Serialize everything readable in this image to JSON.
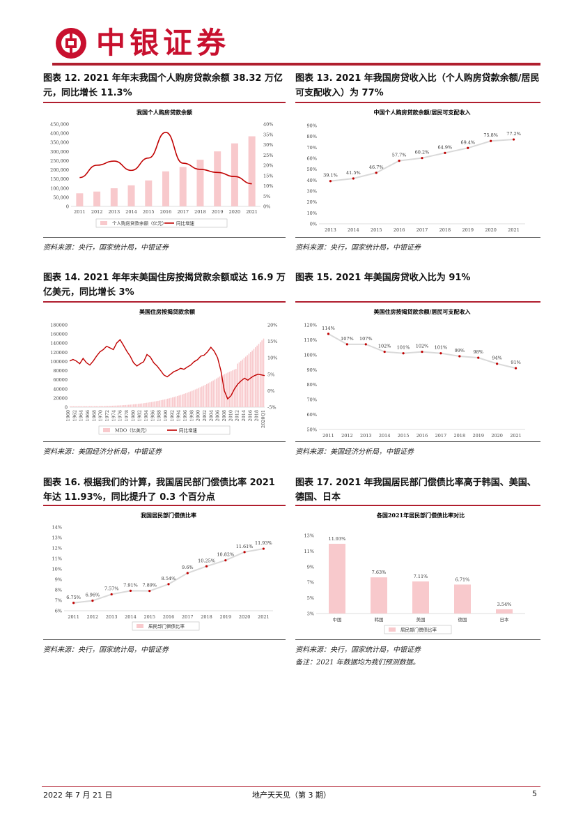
{
  "header": {
    "brand": "中银证券"
  },
  "figures": [
    {
      "title": "图表 12. 2021 年年末我国个人购房贷款余额 38.32 万亿元，同比增长 11.3%",
      "source": "资料来源：央行，国家统计局，中银证券"
    },
    {
      "title": "图表 13. 2021 年我国房贷收入比（个人购房贷款余额/居民可支配收入）为 77%",
      "source": "资料来源：央行，国家统计局，中银证券"
    },
    {
      "title": "图表 14. 2021 年年末美国住房按揭贷款余额或达 16.9 万亿美元，同比增长 3%",
      "source": "资料来源：美国经济分析局，中银证券"
    },
    {
      "title": "图表 15. 2021 年美国房贷收入比为 91%",
      "source": "资料来源：美国经济分析局，中银证券"
    },
    {
      "title": "图表 16. 根据我们的计算，我国居民部门偿债比率 2021 年达 11.93%，同比提升了 0.3 个百分点",
      "source": "资料来源：央行，国家统计局，中银证券"
    },
    {
      "title": "图表 17. 2021 年我国居民部门偿债比率高于韩国、美国、德国、日本",
      "source": "资料来源：央行，国家统计局，中银证券",
      "note": "备注：2021 年数据均为我们预测数据。"
    }
  ],
  "chart_data": [
    {
      "type": "bar",
      "title": "我国个人购房贷款余额",
      "categories": [
        "2011",
        "2012",
        "2013",
        "2014",
        "2015",
        "2016",
        "2017",
        "2018",
        "2019",
        "2020",
        "2021"
      ],
      "series": [
        {
          "name": "个人购房贷款余额（亿元）",
          "type": "bar",
          "axis": "left",
          "color": "#f8c9cc",
          "values": [
            71400,
            81000,
            99000,
            115000,
            141800,
            191400,
            215000,
            255000,
            300700,
            344500,
            383200
          ]
        },
        {
          "name": "同比增速",
          "type": "line",
          "axis": "right",
          "color": "#c00000",
          "values": [
            14,
            20,
            22,
            17.5,
            23.5,
            36,
            21,
            18,
            16.5,
            14.5,
            11
          ]
        }
      ],
      "ylim": [
        0,
        450000
      ],
      "yticks": [
        "0",
        "50,000",
        "100,000",
        "150,000",
        "200,000",
        "250,000",
        "300,000",
        "350,000",
        "400,000",
        "450,000"
      ],
      "y2ticks": [
        "0%",
        "5%",
        "10%",
        "15%",
        "20%",
        "25%",
        "30%",
        "35%",
        "40%"
      ],
      "legend": "bottom"
    },
    {
      "type": "line",
      "title": "中国个人购房贷款余额/居民可支配收入",
      "categories": [
        "2013",
        "2014",
        "2015",
        "2016",
        "2017",
        "2018",
        "2019",
        "2020",
        "2021"
      ],
      "values": [
        39.1,
        41.5,
        46.7,
        57.7,
        60.2,
        64.9,
        69.4,
        75.8,
        77.2
      ],
      "labels": [
        "39.1%",
        "41.5%",
        "46.7%",
        "57.7%",
        "60.2%",
        "64.9%",
        "69.4%",
        "75.8%",
        "77.2%"
      ],
      "ylim": [
        0,
        90
      ],
      "yticks": [
        "0%",
        "10%",
        "20%",
        "30%",
        "40%",
        "50%",
        "60%",
        "70%",
        "80%",
        "90%"
      ]
    },
    {
      "type": "bar",
      "title": "美国住房按揭贷款余额",
      "categories": [
        "1960",
        "1962",
        "1964",
        "1966",
        "1968",
        "1970",
        "1972",
        "1974",
        "1976",
        "1978",
        "1980",
        "1982",
        "1984",
        "1986",
        "1988",
        "1990",
        "1992",
        "1994",
        "1996",
        "1998",
        "2000",
        "2002",
        "2004",
        "2006",
        "2008",
        "2010",
        "2012",
        "2014",
        "2016",
        "2018",
        "2020Q1"
      ],
      "series": [
        {
          "name": "MDO（亿美元）",
          "type": "bar",
          "axis": "left",
          "color": "#f8c9cc"
        },
        {
          "name": "同比增速",
          "type": "line",
          "axis": "right",
          "color": "#c00000"
        }
      ],
      "ylim": [
        0,
        180000
      ],
      "yticks": [
        "0",
        "20000",
        "40000",
        "60000",
        "80000",
        "100000",
        "120000",
        "140000",
        "160000",
        "180000"
      ],
      "y2ticks": [
        "-5%",
        "0%",
        "5%",
        "10%",
        "15%",
        "20%"
      ],
      "legend": "bottom"
    },
    {
      "type": "line",
      "title": "美国住房按揭贷款余额/居民可支配收入",
      "categories": [
        "2011",
        "2012",
        "2013",
        "2014",
        "2015",
        "2016",
        "2017",
        "2018",
        "2019",
        "2020",
        "2021"
      ],
      "values": [
        114,
        107,
        107,
        102,
        101,
        102,
        101,
        99,
        98,
        94,
        91
      ],
      "labels": [
        "114%",
        "107%",
        "107%",
        "102%",
        "101%",
        "102%",
        "101%",
        "99%",
        "98%",
        "94%",
        "91%"
      ],
      "ylim": [
        50,
        120
      ],
      "yticks": [
        "50%",
        "60%",
        "70%",
        "80%",
        "90%",
        "100%",
        "110%",
        "120%"
      ]
    },
    {
      "type": "line",
      "title": "我国居民部门偿债比率",
      "categories": [
        "2011",
        "2012",
        "2013",
        "2014",
        "2015",
        "2016",
        "2017",
        "2018",
        "2019",
        "2020",
        "2021"
      ],
      "values": [
        6.75,
        6.96,
        7.57,
        7.91,
        7.89,
        8.54,
        9.6,
        10.25,
        10.82,
        11.61,
        11.93
      ],
      "labels": [
        "6.75%",
        "6.96%",
        "7.57%",
        "7.91%",
        "7.89%",
        "8.54%",
        "9.6%",
        "10.25%",
        "10.82%",
        "11.61%",
        "11.93%"
      ],
      "ylim": [
        6,
        14
      ],
      "yticks": [
        "6%",
        "7%",
        "8%",
        "9%",
        "10%",
        "11%",
        "12%",
        "13%",
        "14%"
      ],
      "series_name": "居民部门偿债比率",
      "legend": "bottom"
    },
    {
      "type": "bar",
      "title": "各国2021年居民部门偿债比率对比",
      "categories": [
        "中国",
        "韩国",
        "美国",
        "德国",
        "日本"
      ],
      "values": [
        11.93,
        7.63,
        7.11,
        6.71,
        3.54
      ],
      "labels": [
        "11.93%",
        "7.63%",
        "7.11%",
        "6.71%",
        "3.54%"
      ],
      "ylim": [
        3,
        13
      ],
      "yticks": [
        "3%",
        "5%",
        "7%",
        "9%",
        "11%",
        "13%"
      ],
      "series_name": "居民部门偿债比率",
      "legend": "bottom"
    }
  ],
  "footer": {
    "date": "2022 年 7 月 21 日",
    "title": "地产天天见（第 3 期）",
    "page": "5"
  }
}
